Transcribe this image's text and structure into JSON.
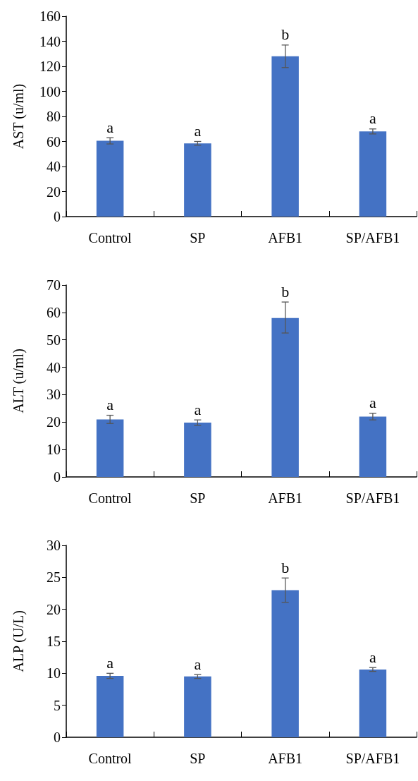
{
  "chart_data": [
    {
      "type": "bar",
      "ylabel": "AST (u/ml)",
      "categories": [
        "Control",
        "SP",
        "AFB1",
        "SP/AFB1"
      ],
      "values": [
        60.5,
        58.5,
        128,
        68
      ],
      "errors": [
        2.5,
        1.5,
        9,
        2
      ],
      "color": "#4472c4",
      "ylim": [
        0,
        160
      ],
      "yticks": [
        0,
        20,
        40,
        60,
        80,
        100,
        120,
        140,
        160
      ],
      "grid": false,
      "annotations": [
        {
          "text": "a",
          "x": "Control",
          "y": 63
        },
        {
          "text": "a",
          "x": "SP",
          "y": 60
        },
        {
          "text": "b",
          "x": "AFB1",
          "y": 137
        },
        {
          "text": "a",
          "x": "SP/AFB1",
          "y": 70
        }
      ]
    },
    {
      "type": "bar",
      "ylabel": "ALT (u/ml)",
      "categories": [
        "Control",
        "SP",
        "AFB1",
        "SP/AFB1"
      ],
      "values": [
        21,
        19.8,
        58,
        22
      ],
      "errors": [
        1.5,
        1,
        [
          52.5,
          63.8
        ],
        1.2
      ],
      "color": "#4472c4",
      "ylim": [
        0,
        70
      ],
      "yticks": [
        0,
        10,
        20,
        30,
        40,
        50,
        60,
        70
      ],
      "grid": false,
      "annotations": [
        {
          "text": "a",
          "x": "Control",
          "y": 22.5
        },
        {
          "text": "a",
          "x": "SP",
          "y": 20.8
        },
        {
          "text": "b",
          "x": "AFB1",
          "y": 63.8
        },
        {
          "text": "a",
          "x": "SP/AFB1",
          "y": 23.2
        }
      ]
    },
    {
      "type": "bar",
      "ylabel": "ALP (U/L)",
      "categories": [
        "Control",
        "SP",
        "AFB1",
        "SP/AFB1"
      ],
      "values": [
        9.6,
        9.5,
        23,
        10.6
      ],
      "errors": [
        0.4,
        0.3,
        1.9,
        0.3
      ],
      "color": "#4472c4",
      "ylim": [
        0,
        30
      ],
      "yticks": [
        0,
        5,
        10,
        15,
        20,
        25,
        30
      ],
      "grid": false,
      "annotations": [
        {
          "text": "a",
          "x": "Control",
          "y": 10
        },
        {
          "text": "a",
          "x": "SP",
          "y": 9.8
        },
        {
          "text": "b",
          "x": "AFB1",
          "y": 24.9
        },
        {
          "text": "a",
          "x": "SP/AFB1",
          "y": 10.9
        }
      ]
    }
  ]
}
